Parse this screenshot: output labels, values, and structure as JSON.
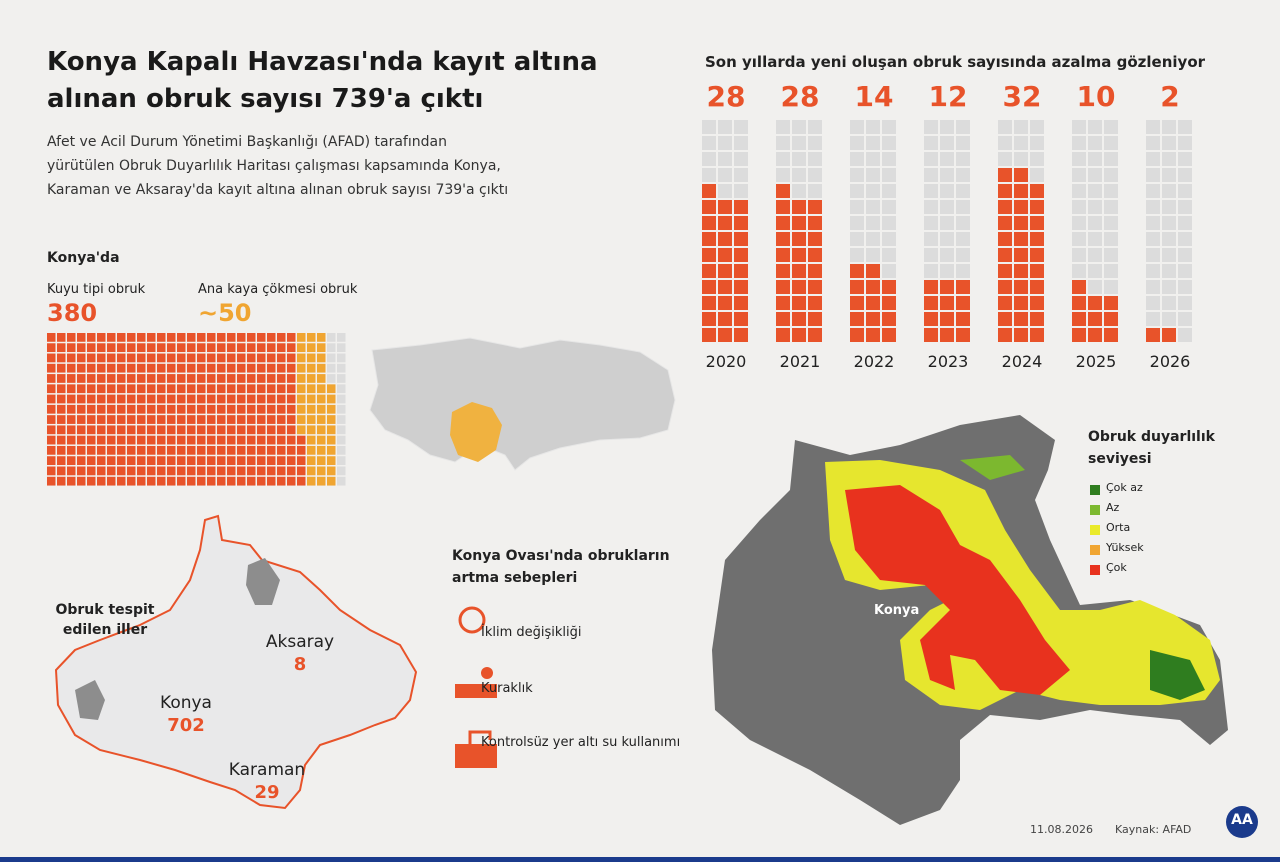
{
  "header": {
    "title": "Konya Kapalı Havzası'nda kayıt altına alınan obruk sayısı 739'a çıktı",
    "subtitle": "Afet ve Acil Durum Yönetimi Başkanlığı (AFAD) tarafından yürütülen Obruk Duyarlılık Haritası çalışması kapsamında Konya, Karaman ve Aksaray'da kayıt altına alınan obruk sayısı 739'a çıktı"
  },
  "konya": {
    "heading": "Konya'da",
    "items": [
      {
        "label": "Kuyu tipi obruk",
        "value": 380,
        "value_label": "380",
        "color": "#e8532a"
      },
      {
        "label": "Ana kaya çökmesi obruk",
        "value": 50,
        "value_label": "~50",
        "color": "#f0a531"
      }
    ]
  },
  "yearly": {
    "title": "Son yıllarda yeni oluşan obruk sayısında azalma gözleniyor",
    "years": [
      "2020",
      "2021",
      "2022",
      "2023",
      "2024",
      "2025",
      "2026"
    ],
    "counts": [
      28,
      28,
      14,
      12,
      32,
      10,
      2
    ],
    "color": "#e8532a"
  },
  "provinces": {
    "title": "Obruk tespit edilen iller",
    "items": [
      {
        "name": "Aksaray",
        "count": 8
      },
      {
        "name": "Konya",
        "count": 702
      },
      {
        "name": "Karaman",
        "count": 29
      }
    ]
  },
  "causes": {
    "title": "Konya Ovası'nda obrukların artma sebepleri",
    "items": [
      "İklim değişikliği",
      "Kuraklık",
      "Kontrolsüz yer altı su kullanımı"
    ]
  },
  "map": {
    "city": "Konya",
    "legend_title": "Obruk duyarlılık seviyesi",
    "legend": [
      {
        "label": "Çok az",
        "color": "#2f7d1f"
      },
      {
        "label": "Az",
        "color": "#7cb82f"
      },
      {
        "label": "Orta",
        "color": "#eaea2a"
      },
      {
        "label": "Yüksek",
        "color": "#f0a531"
      },
      {
        "label": "Çok",
        "color": "#e8321e"
      }
    ]
  },
  "footer": {
    "date": "11.08.2026",
    "source": "Kaynak: AFAD",
    "logo": "AA"
  }
}
